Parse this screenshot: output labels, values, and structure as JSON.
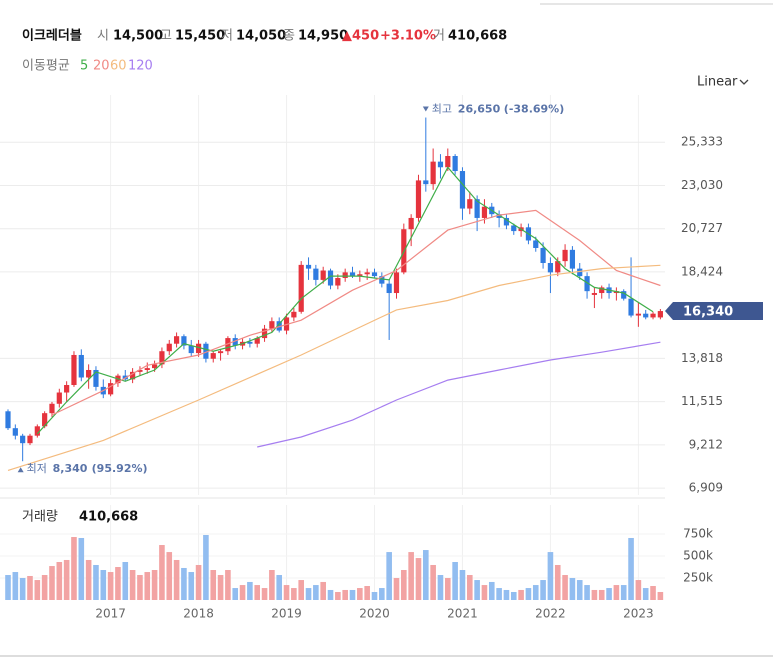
{
  "header": {
    "name": "이크레더블",
    "items": [
      {
        "label": "시",
        "value": "14,500"
      },
      {
        "label": "고",
        "value": "15,450"
      },
      {
        "label": "저",
        "value": "14,050"
      },
      {
        "label": "종",
        "value": "14,950"
      }
    ],
    "change": "▲450",
    "change_pct": "+3.10%",
    "volume_label": "거",
    "volume_value": "410,668"
  },
  "chart_data": [
    {
      "type": "candlestick",
      "scale": "Linear",
      "ma_title": "이동평균",
      "categories": [
        null,
        null,
        null,
        null,
        null,
        null,
        null,
        null,
        null,
        null,
        null,
        null,
        null,
        null,
        "2017",
        null,
        null,
        null,
        null,
        null,
        null,
        null,
        null,
        null,
        null,
        null,
        "2018",
        null,
        null,
        null,
        null,
        null,
        null,
        null,
        null,
        null,
        null,
        null,
        "2019",
        null,
        null,
        null,
        null,
        null,
        null,
        null,
        null,
        null,
        null,
        null,
        "2020",
        null,
        null,
        null,
        null,
        null,
        null,
        null,
        null,
        null,
        null,
        null,
        "2021",
        null,
        null,
        null,
        null,
        null,
        null,
        null,
        null,
        null,
        null,
        null,
        "2022",
        null,
        null,
        null,
        null,
        null,
        null,
        null,
        null,
        null,
        null,
        null,
        "2023",
        null,
        null,
        null
      ],
      "open": [
        11000,
        10100,
        9700,
        9300,
        9700,
        10200,
        10900,
        11400,
        12000,
        12400,
        14000,
        12800,
        13200,
        12300,
        11900,
        12500,
        12900,
        12700,
        13100,
        13200,
        13300,
        13500,
        14200,
        14600,
        15000,
        14500,
        14100,
        14600,
        13800,
        14100,
        14200,
        14900,
        14500,
        14700,
        14600,
        14900,
        15400,
        15800,
        15300,
        16000,
        16300,
        18800,
        18600,
        18000,
        18500,
        17700,
        18100,
        18400,
        18200,
        18300,
        18400,
        18200,
        17800,
        17300,
        18400,
        20700,
        21300,
        23300,
        23100,
        24300,
        24000,
        24600,
        23800,
        21800,
        22300,
        21300,
        21900,
        21500,
        21300,
        20900,
        20600,
        20800,
        20100,
        19700,
        18900,
        18400,
        19000,
        19600,
        18600,
        18200,
        17200,
        17300,
        17600,
        17300,
        17400,
        17000,
        16100,
        16200,
        16000,
        16000
      ],
      "high": [
        11100,
        10300,
        9800,
        9800,
        10300,
        11000,
        11500,
        12200,
        12600,
        14200,
        14300,
        13500,
        13400,
        12700,
        12700,
        13000,
        13200,
        13300,
        13400,
        13600,
        13700,
        14400,
        14800,
        15200,
        15100,
        14800,
        14800,
        14700,
        14200,
        14300,
        15000,
        15100,
        14900,
        14900,
        15000,
        15600,
        16000,
        16000,
        16200,
        16500,
        19000,
        19200,
        18800,
        18700,
        18600,
        18300,
        18600,
        18700,
        18500,
        18600,
        18600,
        18400,
        18000,
        18600,
        21000,
        21500,
        23600,
        26650,
        25000,
        24700,
        25000,
        24700,
        24000,
        22700,
        22500,
        22300,
        22100,
        21700,
        21500,
        21000,
        21000,
        21000,
        20300,
        20000,
        19200,
        19200,
        19900,
        19800,
        18900,
        18400,
        17600,
        17700,
        17800,
        17600,
        17500,
        19200,
        16800,
        16400,
        16300,
        16450
      ],
      "low": [
        10000,
        9500,
        8340,
        9200,
        9600,
        10100,
        10700,
        11200,
        11500,
        12300,
        12600,
        12200,
        12100,
        11700,
        11800,
        12300,
        12600,
        12500,
        12900,
        13000,
        13100,
        13300,
        14000,
        14400,
        14300,
        13900,
        13900,
        13600,
        13600,
        13700,
        14000,
        14300,
        14300,
        14400,
        14400,
        14700,
        15200,
        15200,
        15100,
        15800,
        16200,
        18000,
        17700,
        17800,
        17500,
        17500,
        17900,
        18100,
        17900,
        18000,
        18100,
        17600,
        14800,
        17000,
        18300,
        19800,
        21100,
        22700,
        22800,
        23400,
        23800,
        23600,
        21200,
        21500,
        20600,
        21000,
        21300,
        20800,
        20700,
        20400,
        20300,
        19900,
        19500,
        18600,
        17300,
        18200,
        18700,
        18300,
        18000,
        17000,
        16500,
        17000,
        17000,
        16900,
        16900,
        16000,
        15500,
        15900,
        15900,
        15900
      ],
      "close": [
        10100,
        9700,
        9300,
        9700,
        10200,
        10900,
        11400,
        12000,
        12400,
        14000,
        12800,
        13200,
        12300,
        11900,
        12500,
        12900,
        12700,
        13100,
        13200,
        13300,
        13500,
        14200,
        14600,
        15000,
        14500,
        14100,
        14600,
        13800,
        14100,
        14200,
        14900,
        14500,
        14700,
        14600,
        14900,
        15400,
        15800,
        15300,
        16000,
        16300,
        18800,
        18600,
        18000,
        18500,
        17700,
        18100,
        18400,
        18200,
        18300,
        18400,
        18200,
        17800,
        17300,
        18400,
        20700,
        21300,
        23300,
        23100,
        24300,
        24000,
        24600,
        23800,
        21800,
        22300,
        21300,
        21900,
        21500,
        21300,
        20900,
        20600,
        20800,
        20100,
        19700,
        18900,
        18400,
        19000,
        19600,
        18600,
        18200,
        17400,
        17300,
        17600,
        17300,
        17400,
        17000,
        16100,
        16200,
        16000,
        16200,
        16340
      ],
      "up_color": "#e5333d",
      "down_color": "#2f7be0",
      "series": [
        {
          "name": "5",
          "type": "line",
          "color": "#3fae49",
          "x": [
            4,
            8,
            12,
            16,
            20,
            24,
            28,
            32,
            36,
            40,
            44,
            48,
            52,
            56,
            60,
            64,
            68,
            72,
            76,
            80,
            84,
            88
          ],
          "values": [
            9800,
            11500,
            13100,
            12600,
            13200,
            14600,
            14200,
            14600,
            15200,
            17000,
            18200,
            18200,
            18000,
            21000,
            24000,
            22200,
            21200,
            20200,
            18600,
            17600,
            17300,
            16300
          ]
        },
        {
          "name": "20",
          "type": "line",
          "color": "#f08a85",
          "x": [
            6,
            13,
            19,
            26,
            33,
            40,
            47,
            53,
            60,
            67,
            72,
            78,
            83,
            89
          ],
          "values": [
            10800,
            12100,
            13450,
            14000,
            15050,
            15850,
            17450,
            18500,
            20650,
            21450,
            21700,
            20100,
            18500,
            17700
          ]
        },
        {
          "name": "60",
          "type": "line",
          "color": "#f4bb7e",
          "x": [
            0,
            13,
            26,
            40,
            53,
            60,
            67,
            74,
            81,
            89
          ],
          "values": [
            7850,
            9450,
            11600,
            14000,
            16400,
            16900,
            17700,
            18250,
            18600,
            18780
          ]
        },
        {
          "name": "120",
          "type": "line",
          "color": "#a67ef0",
          "x": [
            34,
            40,
            47,
            53,
            60,
            67,
            74,
            81,
            89
          ],
          "values": [
            9100,
            9630,
            10530,
            11600,
            12660,
            13200,
            13730,
            14150,
            14680
          ]
        }
      ],
      "ylim": [
        6700,
        27850
      ],
      "yticks": [
        {
          "value": 6909,
          "label": "6,909"
        },
        {
          "value": 9212,
          "label": "9,212"
        },
        {
          "value": 11515,
          "label": "11,515"
        },
        {
          "value": 13818,
          "label": "13,818"
        },
        {
          "value": 18424,
          "label": "18,424"
        },
        {
          "value": 20727,
          "label": "20,727"
        },
        {
          "value": 23030,
          "label": "23,030"
        },
        {
          "value": 25333,
          "label": "25,333"
        }
      ],
      "grid": true,
      "annotations": [
        {
          "kind": "max",
          "text": "최고",
          "value": 26650,
          "value_label": "26,650",
          "change": "(-38.69%)"
        },
        {
          "kind": "min",
          "text": "최저",
          "value": 8340,
          "value_label": "8,340",
          "change": "(95.92%)"
        }
      ],
      "last_price": {
        "value": 16340,
        "label": "16,340"
      }
    },
    {
      "type": "bar",
      "title": "거래량",
      "title_value": "410,668",
      "categories": [
        null,
        null,
        null,
        null,
        null,
        null,
        null,
        null,
        null,
        null,
        null,
        null,
        null,
        null,
        "2017",
        null,
        null,
        null,
        null,
        null,
        null,
        null,
        null,
        null,
        null,
        null,
        "2018",
        null,
        null,
        null,
        null,
        null,
        null,
        null,
        null,
        null,
        null,
        null,
        "2019",
        null,
        null,
        null,
        null,
        null,
        null,
        null,
        null,
        null,
        null,
        null,
        "2020",
        null,
        null,
        null,
        null,
        null,
        null,
        null,
        null,
        null,
        null,
        null,
        "2021",
        null,
        null,
        null,
        null,
        null,
        null,
        null,
        null,
        null,
        null,
        null,
        "2022",
        null,
        null,
        null,
        null,
        null,
        null,
        null,
        null,
        null,
        null,
        null,
        "2023",
        null,
        null,
        null
      ],
      "values": [
        284000,
        318000,
        250000,
        273000,
        227000,
        284000,
        386000,
        432000,
        455000,
        716000,
        705000,
        455000,
        398000,
        341000,
        318000,
        375000,
        432000,
        341000,
        284000,
        318000,
        341000,
        625000,
        545000,
        455000,
        364000,
        318000,
        398000,
        739000,
        341000,
        284000,
        341000,
        136000,
        170000,
        205000,
        170000,
        136000,
        341000,
        284000,
        170000,
        136000,
        227000,
        136000,
        170000,
        205000,
        114000,
        91000,
        114000,
        114000,
        136000,
        159000,
        91000,
        136000,
        545000,
        250000,
        341000,
        545000,
        477000,
        568000,
        398000,
        284000,
        250000,
        432000,
        341000,
        284000,
        227000,
        170000,
        205000,
        136000,
        114000,
        91000,
        114000,
        136000,
        170000,
        227000,
        545000,
        398000,
        284000,
        250000,
        227000,
        170000,
        114000,
        114000,
        136000,
        170000,
        170000,
        705000,
        227000,
        136000,
        159000,
        91000
      ],
      "up_color": "#f2a3a3",
      "down_color": "#92bdf0",
      "ylim": [
        0,
        1080000
      ],
      "yticks": [
        {
          "value": 250000,
          "label": "250k"
        },
        {
          "value": 500000,
          "label": "500k"
        },
        {
          "value": 750000,
          "label": "750k"
        }
      ]
    }
  ]
}
